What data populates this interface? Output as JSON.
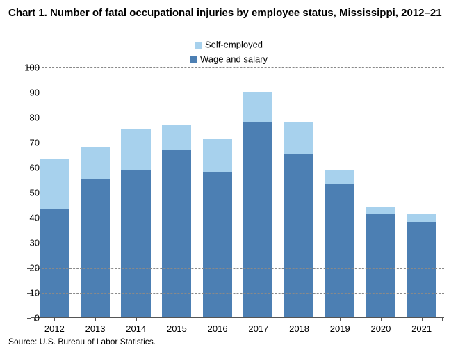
{
  "chart": {
    "type": "stacked-bar",
    "title": "Chart 1. Number of fatal occupational injuries by employee status, Mississippi, 2012–21",
    "title_fontsize": 15,
    "categories": [
      "2012",
      "2013",
      "2014",
      "2015",
      "2016",
      "2017",
      "2018",
      "2019",
      "2020",
      "2021"
    ],
    "series": [
      {
        "name": "Wage and salary",
        "color": "#4c7fb3",
        "values": [
          43,
          55,
          59,
          67,
          58,
          78,
          65,
          53,
          41,
          38
        ]
      },
      {
        "name": "Self-employed",
        "color": "#a7d1ed",
        "values": [
          20,
          13,
          16,
          10,
          13,
          12,
          13,
          6,
          3,
          3
        ]
      }
    ],
    "ylim": [
      0,
      100
    ],
    "ytick_step": 10,
    "grid_color": "#898989",
    "axis_color": "#555555",
    "background_color": "#ffffff",
    "axis_fontsize": 13,
    "legend_fontsize": 13,
    "bar_width_ratio": 0.72,
    "source": "Source: U.S. Bureau of Labor Statistics.",
    "source_fontsize": 12
  }
}
